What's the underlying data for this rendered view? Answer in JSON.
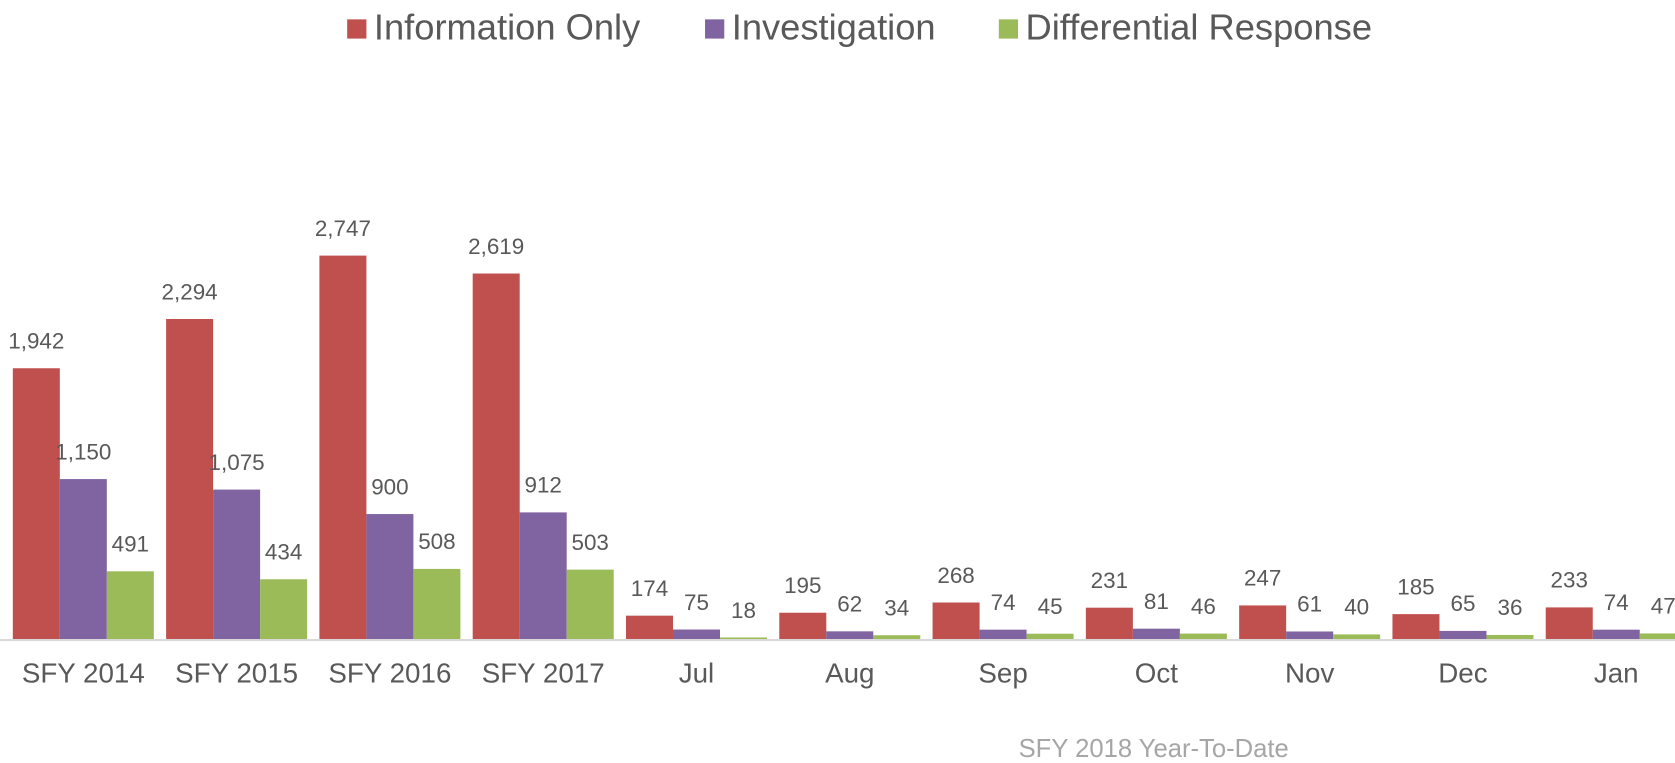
{
  "chart_data": {
    "type": "bar",
    "categories": [
      "SFY 2014",
      "SFY 2015",
      "SFY 2016",
      "SFY 2017",
      "Jul",
      "Aug",
      "Sep",
      "Oct",
      "Nov",
      "Dec",
      "Jan"
    ],
    "series": [
      {
        "name": "Information Only",
        "color": "#c0504d",
        "values": [
          1942,
          2294,
          2747,
          2619,
          174,
          195,
          268,
          231,
          247,
          185,
          233
        ],
        "value_labels": [
          "1,942",
          "2,294",
          "2,747",
          "2,619",
          "174",
          "195",
          "268",
          "231",
          "247",
          "185",
          "233"
        ]
      },
      {
        "name": "Investigation",
        "color": "#8064a2",
        "values": [
          1150,
          1075,
          900,
          912,
          75,
          62,
          74,
          81,
          61,
          65,
          74
        ],
        "value_labels": [
          "1,150",
          "1,075",
          "900",
          "912",
          "75",
          "62",
          "74",
          "81",
          "61",
          "65",
          "74"
        ]
      },
      {
        "name": "Differential Response",
        "color": "#9bbb59",
        "values": [
          491,
          434,
          508,
          503,
          18,
          34,
          45,
          46,
          40,
          36,
          47
        ],
        "value_labels": [
          "491",
          "434",
          "508",
          "503",
          "18",
          "34",
          "45",
          "46",
          "40",
          "36",
          "47"
        ]
      }
    ],
    "ylim": [
      0,
      3000
    ],
    "annotation": "SFY 2018 Year-To-Date",
    "legend": "top"
  }
}
